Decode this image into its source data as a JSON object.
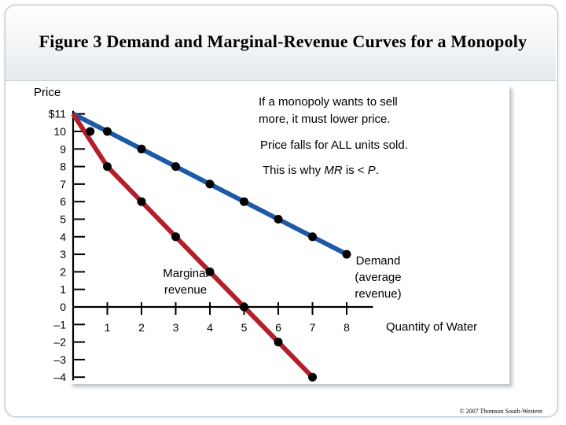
{
  "slide": {
    "title": "Figure 3 Demand and Marginal-Revenue Curves for a Monopoly",
    "copyright": "© 2007 Thomson South-Western"
  },
  "chart_data": {
    "type": "line",
    "ylabel": "Price",
    "xlabel": "Quantity of Water",
    "x_ticks": [
      "1",
      "2",
      "3",
      "4",
      "5",
      "6",
      "7",
      "8"
    ],
    "y_ticks": [
      "$11",
      "10",
      "9",
      "8",
      "7",
      "6",
      "5",
      "4",
      "3",
      "2",
      "1",
      "0",
      "–1",
      "–2",
      "–3",
      "–4"
    ],
    "xlim": [
      0,
      9
    ],
    "ylim": [
      -4,
      11
    ],
    "series": [
      {
        "key": "demand",
        "color": "#1d5aa6",
        "x": [
          0,
          1,
          2,
          3,
          4,
          5,
          6,
          7,
          8
        ],
        "y": [
          11,
          10,
          9,
          8,
          7,
          6,
          5,
          4,
          3
        ]
      },
      {
        "key": "marginal-revenue",
        "color": "#b3202a",
        "x": [
          0,
          1,
          2,
          3,
          4,
          5,
          6,
          7
        ],
        "y": [
          11,
          8,
          6,
          4,
          2,
          0,
          -2,
          -4
        ]
      }
    ],
    "mr_extra_points": [
      {
        "x": 0.5,
        "y": 10
      }
    ],
    "labels": {
      "demand": [
        "Demand",
        "(average",
        "revenue)"
      ],
      "mr": [
        "Marginal",
        "revenue"
      ]
    },
    "annotations": [
      [
        "If a monopoly wants to sell",
        "more, it must lower price."
      ],
      [
        "Price falls for ALL units sold."
      ],
      [
        "This is why ",
        "MR",
        " is < ",
        "P",
        "."
      ]
    ]
  }
}
